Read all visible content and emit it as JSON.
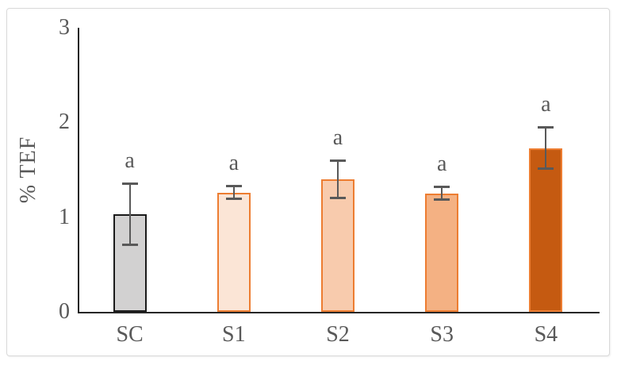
{
  "figure": {
    "background": "#ffffff",
    "frame_border_color": "#d9d9d9"
  },
  "chart_data": {
    "type": "bar",
    "title": "",
    "xlabel": "",
    "ylabel": "% TEF",
    "ylim": [
      0,
      3
    ],
    "yticks": [
      0,
      1,
      2,
      3
    ],
    "grid": false,
    "legend": false,
    "categories": [
      "SC",
      "S1",
      "S2",
      "S3",
      "S4"
    ],
    "values": [
      1.03,
      1.26,
      1.4,
      1.25,
      1.73
    ],
    "error_bars": [
      0.33,
      0.07,
      0.2,
      0.07,
      0.22
    ],
    "significance_labels": [
      "a",
      "a",
      "a",
      "a",
      "a"
    ],
    "bar_colors": [
      {
        "fill": "#d2d1d1",
        "border": "#1a1a1a"
      },
      {
        "fill": "#fbe5d6",
        "border": "#ed7d31"
      },
      {
        "fill": "#f8cbad",
        "border": "#ed7d31"
      },
      {
        "fill": "#f4b183",
        "border": "#ed7d31"
      },
      {
        "fill": "#c55a11",
        "border": "#ed7d31"
      }
    ],
    "error_bar_color": "#595959",
    "axis_color": "#262626",
    "tick_label_color": "#595959"
  }
}
